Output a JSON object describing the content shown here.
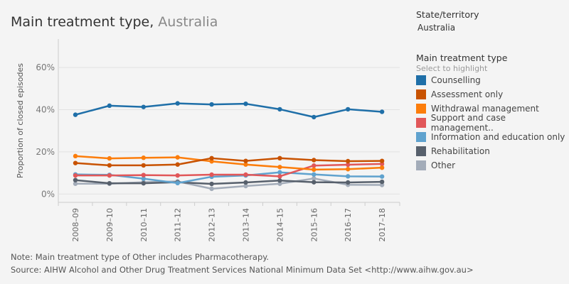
{
  "title": {
    "main": "Main treatment type,",
    "sub": "Australia"
  },
  "filter": {
    "label": "State/territory",
    "value": "Australia"
  },
  "legend": {
    "title": "Main treatment type",
    "hint": "Select to highlight"
  },
  "notes": {
    "note": "Note: Main treatment type of Other includes Pharmacotherapy.",
    "source": "Source: AIHW Alcohol and Other Drug Treatment Services National Minimum Data Set <http://www.aihw.gov.au>"
  },
  "chart_data": {
    "type": "line",
    "title": "Main treatment type, Australia",
    "ylabel": "Proportion of closed episodes",
    "xlabel": "",
    "ylim": [
      0,
      70
    ],
    "yticks": [
      "0%",
      "20%",
      "40%",
      "60%"
    ],
    "grid": true,
    "legend": "right",
    "categories": [
      "2008–09",
      "2009–10",
      "2010–11",
      "2011–12",
      "2012–13",
      "2013–14",
      "2014–15",
      "2015–16",
      "2016–17",
      "2017–18"
    ],
    "series": [
      {
        "name": "Counselling",
        "color": "#1f6fa8",
        "values": [
          37.6,
          41.9,
          41.3,
          43.0,
          42.5,
          42.8,
          40.2,
          36.5,
          40.2,
          39.0
        ]
      },
      {
        "name": "Assessment only",
        "color": "#c85200",
        "values": [
          14.7,
          13.6,
          13.6,
          14.0,
          17.0,
          15.7,
          17.0,
          16.1,
          15.6,
          15.7
        ]
      },
      {
        "name": "Withdrawal management",
        "color": "#fc7d0b",
        "values": [
          18.0,
          16.9,
          17.2,
          17.4,
          15.5,
          14.0,
          12.8,
          11.6,
          11.8,
          12.5
        ]
      },
      {
        "name": "Support and case management..",
        "color": "#e15759",
        "values": [
          8.8,
          8.8,
          9.0,
          8.8,
          9.2,
          9.2,
          8.4,
          13.5,
          13.9,
          14.3
        ]
      },
      {
        "name": "Information and education only",
        "color": "#5fa2ce",
        "values": [
          9.3,
          9.1,
          7.3,
          5.2,
          8.2,
          8.8,
          10.3,
          9.3,
          8.4,
          8.3
        ]
      },
      {
        "name": "Rehabilitation",
        "color": "#57606c",
        "values": [
          6.6,
          5.1,
          5.1,
          5.6,
          4.8,
          5.5,
          6.4,
          5.6,
          5.5,
          5.8
        ]
      },
      {
        "name": "Other",
        "color": "#a3acb9",
        "values": [
          4.9,
          4.9,
          5.6,
          6.0,
          2.5,
          3.8,
          4.9,
          7.4,
          4.4,
          4.3
        ]
      }
    ]
  }
}
